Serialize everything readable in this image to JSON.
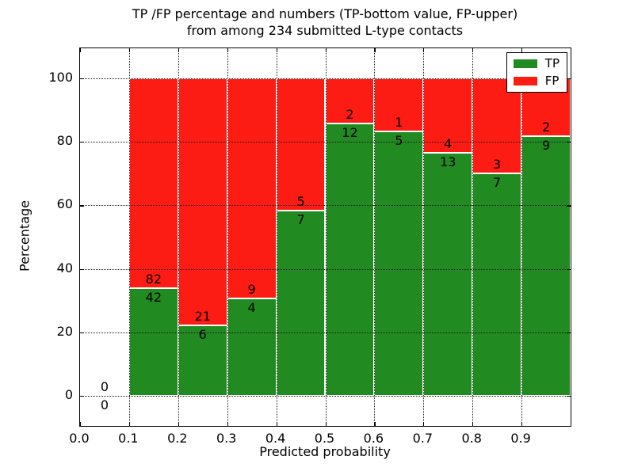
{
  "title": {
    "line1": "TP /FP percentage and numbers (TP-bottom value, FP-upper)",
    "line2": "from among 234 submitted L-type contacts"
  },
  "axes": {
    "xlabel": "Predicted probability",
    "ylabel": "Percentage",
    "ytick_labels": [
      "0",
      "20",
      "40",
      "60",
      "80",
      "100"
    ],
    "xtick_labels": [
      "0.0",
      "0.1",
      "0.2",
      "0.3",
      "0.4",
      "0.5",
      "0.6",
      "0.7",
      "0.8",
      "0.9"
    ]
  },
  "legend": {
    "position": "upper right",
    "entries": [
      {
        "label": "TP",
        "color": "#218a21"
      },
      {
        "label": "FP",
        "color": "#fc1c13"
      }
    ]
  },
  "chart_data": {
    "type": "bar",
    "stacked": true,
    "title": "TP /FP percentage and numbers (TP-bottom value, FP-upper) from among 234 submitted L-type contacts",
    "xlabel": "Predicted probability",
    "ylabel": "Percentage",
    "xlim": [
      0.0,
      1.0
    ],
    "ylim": [
      -9.5,
      109.5
    ],
    "grid": "dotted",
    "bar_edge_color": "#ffffff",
    "bin_width": 0.1,
    "total_submitted": 234,
    "x_bin_starts": [
      0.0,
      0.1,
      0.2,
      0.3,
      0.4,
      0.5,
      0.6,
      0.7,
      0.8,
      0.9
    ],
    "xticks": [
      0.0,
      0.1,
      0.2,
      0.3,
      0.4,
      0.5,
      0.6,
      0.7,
      0.8,
      0.9
    ],
    "yticks": [
      0,
      20,
      40,
      60,
      80,
      100
    ],
    "series": [
      {
        "name": "TP",
        "color": "#218a21",
        "counts": [
          0,
          42,
          6,
          4,
          7,
          12,
          5,
          13,
          7,
          9
        ]
      },
      {
        "name": "FP",
        "color": "#fc1c13",
        "counts": [
          0,
          82,
          21,
          9,
          5,
          2,
          1,
          4,
          3,
          2
        ]
      }
    ],
    "tp_percent_of_bin": [
      0,
      33.87,
      22.22,
      30.77,
      58.33,
      85.71,
      83.33,
      76.47,
      70.0,
      81.82
    ],
    "legend_position": "upper right"
  }
}
